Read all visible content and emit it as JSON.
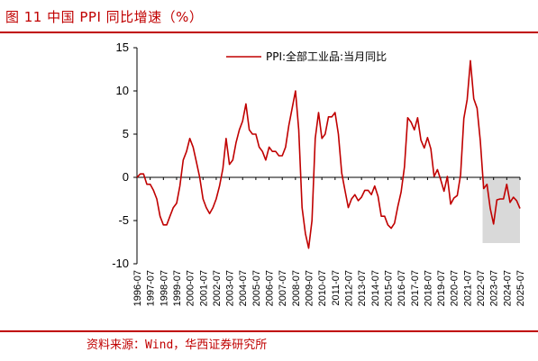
{
  "header": {
    "figure_title": "图 11  中国 PPI 同比增速（%）"
  },
  "footer": {
    "source": "资料来源：Wind，华西证券研究所"
  },
  "colors": {
    "brand_red": "#c00000",
    "series_red": "#c00000",
    "shaded_region": "#d9d9d9"
  },
  "chart_data": {
    "type": "line",
    "title": "",
    "xlabel": "",
    "ylabel": "",
    "ylim": [
      -10,
      15
    ],
    "yticks": [
      15,
      10,
      5,
      0,
      -5,
      -10
    ],
    "x_tick_labels": [
      "1996-07",
      "1997-07",
      "1998-07",
      "1999-07",
      "2000-07",
      "2001-07",
      "2002-07",
      "2003-07",
      "2004-07",
      "2005-07",
      "2006-07",
      "2007-07",
      "2008-07",
      "2009-07",
      "2010-07",
      "2011-07",
      "2012-07",
      "2013-07",
      "2014-07",
      "2015-07",
      "2016-07",
      "2017-07",
      "2018-07",
      "2019-07",
      "2020-07",
      "2021-07",
      "2022-07",
      "2023-07",
      "2024-07",
      "2025-07"
    ],
    "grid": false,
    "legend": "top-center",
    "shaded_range": [
      "2022-09",
      "2025-07"
    ],
    "series": [
      {
        "name": "PPI:全部工业品:当月同比",
        "points": [
          [
            "1996-07",
            0.0
          ],
          [
            "1996-10",
            0.4
          ],
          [
            "1997-01",
            0.4
          ],
          [
            "1997-04",
            -0.8
          ],
          [
            "1997-07",
            -0.8
          ],
          [
            "1997-10",
            -1.5
          ],
          [
            "1998-01",
            -2.5
          ],
          [
            "1998-04",
            -4.5
          ],
          [
            "1998-07",
            -5.5
          ],
          [
            "1998-10",
            -5.5
          ],
          [
            "1999-01",
            -4.5
          ],
          [
            "1999-04",
            -3.5
          ],
          [
            "1999-07",
            -3.0
          ],
          [
            "1999-10",
            -1.0
          ],
          [
            "2000-01",
            2.0
          ],
          [
            "2000-04",
            3.0
          ],
          [
            "2000-07",
            4.5
          ],
          [
            "2000-10",
            3.5
          ],
          [
            "2001-01",
            1.8
          ],
          [
            "2001-04",
            0.0
          ],
          [
            "2001-07",
            -2.5
          ],
          [
            "2001-10",
            -3.5
          ],
          [
            "2002-01",
            -4.2
          ],
          [
            "2002-04",
            -3.5
          ],
          [
            "2002-07",
            -2.5
          ],
          [
            "2002-10",
            -1.0
          ],
          [
            "2003-01",
            1.0
          ],
          [
            "2003-04",
            4.5
          ],
          [
            "2003-07",
            1.5
          ],
          [
            "2003-10",
            2.0
          ],
          [
            "2004-01",
            4.0
          ],
          [
            "2004-04",
            5.5
          ],
          [
            "2004-07",
            6.5
          ],
          [
            "2004-10",
            8.5
          ],
          [
            "2005-01",
            5.5
          ],
          [
            "2005-04",
            5.0
          ],
          [
            "2005-07",
            5.0
          ],
          [
            "2005-10",
            3.5
          ],
          [
            "2006-01",
            3.0
          ],
          [
            "2006-04",
            2.0
          ],
          [
            "2006-07",
            3.5
          ],
          [
            "2006-10",
            3.0
          ],
          [
            "2007-01",
            3.0
          ],
          [
            "2007-04",
            2.5
          ],
          [
            "2007-07",
            2.5
          ],
          [
            "2007-10",
            3.5
          ],
          [
            "2008-01",
            6.0
          ],
          [
            "2008-04",
            8.0
          ],
          [
            "2008-07",
            10.0
          ],
          [
            "2008-10",
            5.5
          ],
          [
            "2009-01",
            -3.5
          ],
          [
            "2009-04",
            -6.5
          ],
          [
            "2009-07",
            -8.2
          ],
          [
            "2009-10",
            -5.0
          ],
          [
            "2010-01",
            4.5
          ],
          [
            "2010-04",
            7.5
          ],
          [
            "2010-07",
            4.5
          ],
          [
            "2010-10",
            5.0
          ],
          [
            "2011-01",
            7.0
          ],
          [
            "2011-04",
            7.0
          ],
          [
            "2011-07",
            7.5
          ],
          [
            "2011-10",
            5.0
          ],
          [
            "2012-01",
            0.5
          ],
          [
            "2012-04",
            -1.5
          ],
          [
            "2012-07",
            -3.5
          ],
          [
            "2012-10",
            -2.5
          ],
          [
            "2013-01",
            -2.0
          ],
          [
            "2013-04",
            -2.7
          ],
          [
            "2013-07",
            -2.3
          ],
          [
            "2013-10",
            -1.5
          ],
          [
            "2014-01",
            -1.5
          ],
          [
            "2014-04",
            -2.0
          ],
          [
            "2014-07",
            -1.0
          ],
          [
            "2014-10",
            -2.2
          ],
          [
            "2015-01",
            -4.5
          ],
          [
            "2015-04",
            -4.5
          ],
          [
            "2015-07",
            -5.5
          ],
          [
            "2015-10",
            -5.9
          ],
          [
            "2016-01",
            -5.3
          ],
          [
            "2016-04",
            -3.4
          ],
          [
            "2016-07",
            -1.7
          ],
          [
            "2016-10",
            1.2
          ],
          [
            "2017-01",
            6.9
          ],
          [
            "2017-04",
            6.4
          ],
          [
            "2017-07",
            5.5
          ],
          [
            "2017-10",
            6.9
          ],
          [
            "2018-01",
            4.3
          ],
          [
            "2018-04",
            3.4
          ],
          [
            "2018-07",
            4.6
          ],
          [
            "2018-10",
            3.3
          ],
          [
            "2019-01",
            0.1
          ],
          [
            "2019-04",
            0.9
          ],
          [
            "2019-07",
            -0.3
          ],
          [
            "2019-10",
            -1.6
          ],
          [
            "2020-01",
            0.1
          ],
          [
            "2020-04",
            -3.1
          ],
          [
            "2020-07",
            -2.4
          ],
          [
            "2020-10",
            -2.1
          ],
          [
            "2021-01",
            0.3
          ],
          [
            "2021-04",
            6.8
          ],
          [
            "2021-07",
            9.0
          ],
          [
            "2021-10",
            13.5
          ],
          [
            "2022-01",
            9.1
          ],
          [
            "2022-04",
            8.0
          ],
          [
            "2022-07",
            4.2
          ],
          [
            "2022-10",
            -1.3
          ],
          [
            "2023-01",
            -0.8
          ],
          [
            "2023-04",
            -3.6
          ],
          [
            "2023-07",
            -5.4
          ],
          [
            "2023-10",
            -2.6
          ],
          [
            "2024-01",
            -2.5
          ],
          [
            "2024-04",
            -2.5
          ],
          [
            "2024-07",
            -0.8
          ],
          [
            "2024-10",
            -2.9
          ],
          [
            "2025-01",
            -2.3
          ],
          [
            "2025-04",
            -2.7
          ],
          [
            "2025-07",
            -3.6
          ]
        ]
      }
    ]
  }
}
